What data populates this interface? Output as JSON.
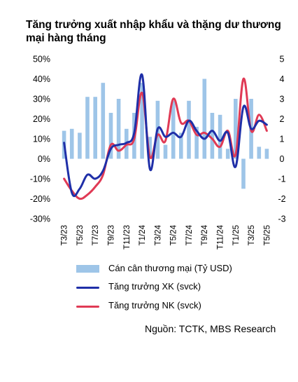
{
  "title": "Tăng trưởng xuất nhập khẩu và thặng dư thương mại hàng tháng",
  "source": "Nguồn: TCTK, MBS Research",
  "colors": {
    "bars": "#9ec5e8",
    "export": "#1f2fa8",
    "import": "#e03a55"
  },
  "legend": {
    "bars": "Cán cân thương mại (Tỷ USD)",
    "export": "Tăng trưởng XK (svck)",
    "import": "Tăng trưởng NK (svck)"
  },
  "chart_data": {
    "type": "bar+line",
    "categories": [
      "T3/23",
      "T4/23",
      "T5/23",
      "T6/23",
      "T7/23",
      "T8/23",
      "T9/23",
      "T10/23",
      "T11/23",
      "T12/23",
      "T1/24",
      "T2/24",
      "T3/24",
      "T4/24",
      "T5/24",
      "T6/24",
      "T7/24",
      "T8/24",
      "T9/24",
      "T10/24",
      "T11/24",
      "T12/24",
      "T1/25",
      "T2/25",
      "T3/25",
      "T4/25",
      "T5/25"
    ],
    "x_tick_labels": [
      "T3/23",
      "T5/23",
      "T7/23",
      "T9/23",
      "T11/23",
      "T1/24",
      "T3/24",
      "T5/24",
      "T7/24",
      "T9/24",
      "T11/24",
      "T1/25",
      "T3/25",
      "T5/25"
    ],
    "left_axis": {
      "ticks": [
        "50%",
        "40%",
        "30%",
        "20%",
        "10%",
        "0%",
        "-10%",
        "-20%",
        "-30%"
      ],
      "range": [
        -30,
        50
      ]
    },
    "right_axis": {
      "ticks": [
        "5",
        "4",
        "3",
        "2",
        "1",
        "0",
        "-1",
        "-2",
        "-3"
      ],
      "range": [
        -3,
        5
      ]
    },
    "series": [
      {
        "name": "Cán cân thương mại (Tỷ USD)",
        "axis": "right",
        "kind": "bar",
        "values": [
          1.4,
          1.5,
          1.3,
          3.1,
          3.1,
          3.8,
          2.3,
          3.0,
          1.5,
          2.3,
          3.8,
          1.1,
          2.9,
          0.7,
          2.9,
          1.3,
          2.9,
          1.6,
          4.0,
          2.3,
          2.2,
          0.5,
          3.0,
          -1.5,
          3.0,
          0.6,
          0.5
        ]
      },
      {
        "name": "Tăng trưởng XK (svck)",
        "axis": "left",
        "kind": "line",
        "values": [
          8,
          -17,
          -15,
          -8,
          -10,
          -6,
          5,
          7,
          8,
          13,
          42,
          -5,
          15,
          11,
          13,
          11,
          19,
          14,
          10,
          14,
          9,
          13,
          -4,
          26,
          15,
          19,
          17
        ]
      },
      {
        "name": "Tăng trưởng NK (svck)",
        "axis": "left",
        "kind": "line",
        "values": [
          -10,
          -16,
          -20,
          -18,
          -14,
          -8,
          7,
          4,
          7,
          10,
          33,
          1,
          12,
          9,
          30,
          18,
          19,
          12,
          13,
          10,
          6,
          14,
          2,
          40,
          14,
          22,
          14
        ]
      }
    ]
  }
}
